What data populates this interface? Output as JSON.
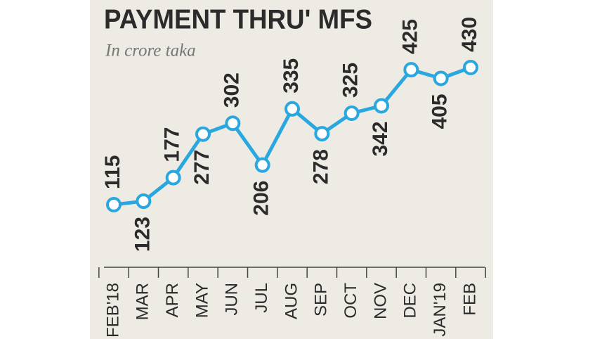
{
  "chart_data": {
    "type": "line",
    "title": "PAYMENT THRU' MFS",
    "subtitle": "In crore taka",
    "categories": [
      "FEB'18",
      "MAR",
      "APR",
      "MAY",
      "JUN",
      "JUL",
      "AUG",
      "SEP",
      "OCT",
      "NOV",
      "DEC",
      "JAN'19",
      "FEB"
    ],
    "values": [
      115,
      123,
      177,
      277,
      302,
      206,
      335,
      278,
      325,
      342,
      425,
      405,
      430
    ],
    "color": "#2aa7df"
  }
}
